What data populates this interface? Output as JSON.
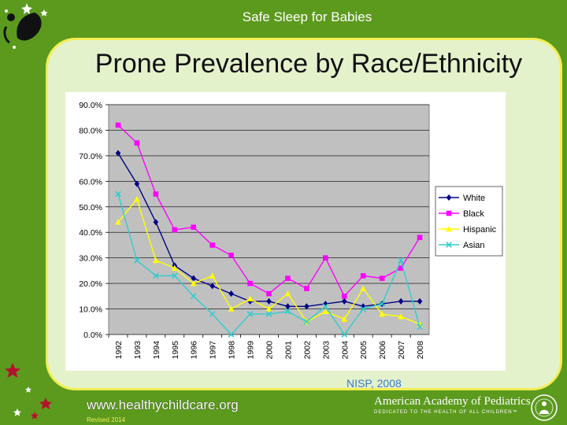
{
  "header": {
    "title": "Safe Sleep for Babies"
  },
  "slide": {
    "title": "Prone Prevalence by Race/Ethnicity"
  },
  "footer": {
    "source": "NISP, 2008",
    "website": "www.healthychildcare.org",
    "revised": "Revised 2014",
    "org_name": "American Academy of Pediatrics",
    "org_tagline": "DEDICATED TO THE HEALTH OF ALL CHILDREN™"
  },
  "colors": {
    "background": "#5c9a1e",
    "panel": "#e4f2cc",
    "panel_border": "#f3ee55",
    "plot_area": "#c0c0c0"
  },
  "chart_data": {
    "type": "line",
    "title": "",
    "xlabel": "",
    "ylabel": "",
    "ylim": [
      0,
      90
    ],
    "y_ticks": [
      "0.0%",
      "10.0%",
      "20.0%",
      "30.0%",
      "40.0%",
      "50.0%",
      "60.0%",
      "70.0%",
      "80.0%",
      "90.0%"
    ],
    "grid": true,
    "legend_position": "right",
    "x": [
      "1992",
      "1993",
      "1994",
      "1995",
      "1996",
      "1997",
      "1998",
      "1999",
      "2000",
      "2001",
      "2002",
      "2003",
      "2004",
      "2005",
      "2006",
      "2007",
      "2008"
    ],
    "series": [
      {
        "name": "White",
        "color": "#000080",
        "marker": "diamond",
        "values": [
          71,
          59,
          44,
          27,
          22,
          19,
          16,
          13,
          13,
          11,
          11,
          12,
          13,
          11,
          12,
          13,
          13
        ]
      },
      {
        "name": "Black",
        "color": "#ff00ff",
        "marker": "square",
        "values": [
          82,
          75,
          55,
          41,
          42,
          35,
          31,
          20,
          16,
          22,
          18,
          30,
          15,
          23,
          22,
          26,
          38
        ]
      },
      {
        "name": "Hispanic",
        "color": "#ffff00",
        "marker": "triangle",
        "values": [
          44,
          53,
          29,
          26,
          20,
          23,
          10,
          14,
          10,
          16,
          5,
          9,
          6,
          18,
          8,
          7,
          4
        ]
      },
      {
        "name": "Asian",
        "color": "#33cccc",
        "marker": "x",
        "values": [
          55,
          29,
          23,
          23,
          15,
          8,
          0,
          8,
          8,
          9,
          5,
          11,
          0,
          10,
          12,
          29,
          3
        ]
      }
    ]
  }
}
